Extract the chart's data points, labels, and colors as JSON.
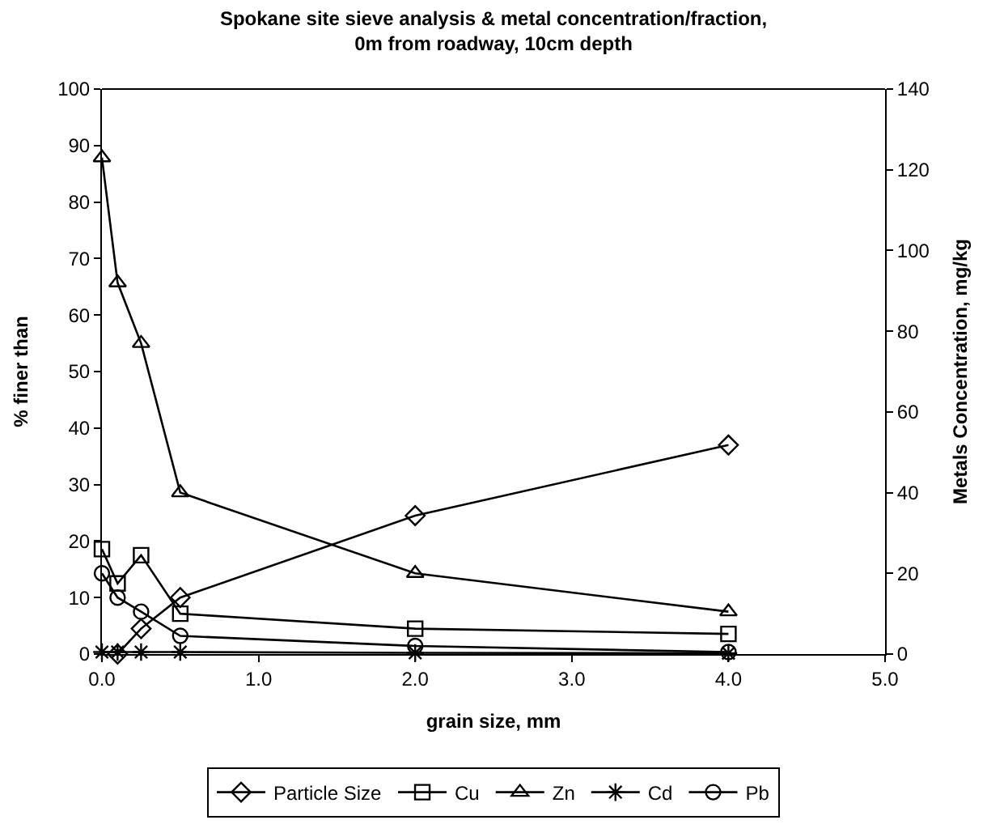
{
  "chart_data": {
    "type": "line",
    "title": "Spokane site sieve analysis & metal concentration/fraction, 0m from roadway, 10cm depth",
    "xlabel": "grain size, mm",
    "ylabel": "% finer than",
    "y2label": "Metals Concentration, mg/kg",
    "xlim": [
      0,
      5
    ],
    "xticks": [
      {
        "value": 0,
        "label": "0.0"
      },
      {
        "value": 1,
        "label": "1.0"
      },
      {
        "value": 2,
        "label": "2.0"
      },
      {
        "value": 3,
        "label": "3.0"
      },
      {
        "value": 4,
        "label": "4.0"
      },
      {
        "value": 5,
        "label": "5.0"
      }
    ],
    "ylim": [
      0,
      100
    ],
    "yticks": [
      0,
      10,
      20,
      30,
      40,
      50,
      60,
      70,
      80,
      90,
      100
    ],
    "y2lim": [
      0,
      140
    ],
    "y2ticks": [
      0,
      20,
      40,
      60,
      80,
      100,
      120,
      140
    ],
    "grid": false,
    "legend": "bottom",
    "series": [
      {
        "name": "Particle Size",
        "color": "#000000",
        "marker": "diamond",
        "x": [
          0.1,
          0.25,
          0.5,
          2,
          4
        ],
        "values": [
          0,
          4.5,
          10,
          24.5,
          37
        ]
      },
      {
        "name": "Cu",
        "color": "#000000",
        "marker": "square",
        "axis": "y2",
        "x": [
          0,
          0.1,
          0.25,
          0.5,
          2,
          4
        ],
        "values": [
          26,
          17.5,
          24.5,
          10,
          6.3,
          5
        ]
      },
      {
        "name": "Zn",
        "color": "#000000",
        "marker": "triangle",
        "axis": "y2",
        "x": [
          0,
          0.1,
          0.25,
          0.5,
          2,
          4
        ],
        "values": [
          123,
          92,
          77,
          40,
          20,
          10.5
        ]
      },
      {
        "name": "Cd",
        "color": "#000000",
        "marker": "cross",
        "axis": "y2",
        "x": [
          0,
          0.1,
          0.25,
          0.5,
          2,
          4
        ],
        "values": [
          0.5,
          0.5,
          0.5,
          0.5,
          0.3,
          0.2
        ]
      },
      {
        "name": "Pb",
        "color": "#000000",
        "marker": "circle",
        "axis": "y2",
        "x": [
          0,
          0.1,
          0.25,
          0.5,
          2,
          4
        ],
        "values": [
          20,
          14,
          10.5,
          4.5,
          2,
          0.5
        ]
      }
    ]
  }
}
